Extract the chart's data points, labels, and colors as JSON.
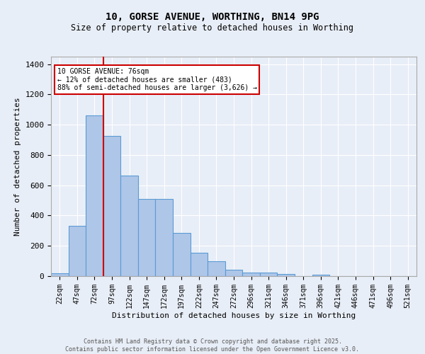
{
  "title1": "10, GORSE AVENUE, WORTHING, BN14 9PG",
  "title2": "Size of property relative to detached houses in Worthing",
  "xlabel": "Distribution of detached houses by size in Worthing",
  "ylabel": "Number of detached properties",
  "categories": [
    "22sqm",
    "47sqm",
    "72sqm",
    "97sqm",
    "122sqm",
    "147sqm",
    "172sqm",
    "197sqm",
    "222sqm",
    "247sqm",
    "272sqm",
    "296sqm",
    "321sqm",
    "346sqm",
    "371sqm",
    "396sqm",
    "421sqm",
    "446sqm",
    "471sqm",
    "496sqm",
    "521sqm"
  ],
  "values": [
    20,
    330,
    1060,
    925,
    665,
    510,
    510,
    285,
    155,
    100,
    40,
    25,
    25,
    15,
    0,
    10,
    0,
    0,
    0,
    0,
    0
  ],
  "bar_color": "#aec6e8",
  "bar_edge_color": "#5b9bd5",
  "vline_x": 2.5,
  "vline_color": "#cc0000",
  "annotation_text": "10 GORSE AVENUE: 76sqm\n← 12% of detached houses are smaller (483)\n88% of semi-detached houses are larger (3,626) →",
  "annotation_box_color": "#ffffff",
  "annotation_box_edge": "#cc0000",
  "ylim": [
    0,
    1450
  ],
  "yticks": [
    0,
    200,
    400,
    600,
    800,
    1000,
    1200,
    1400
  ],
  "background_color": "#e8eef7",
  "grid_color": "#ffffff",
  "footer1": "Contains HM Land Registry data © Crown copyright and database right 2025.",
  "footer2": "Contains public sector information licensed under the Open Government Licence v3.0."
}
